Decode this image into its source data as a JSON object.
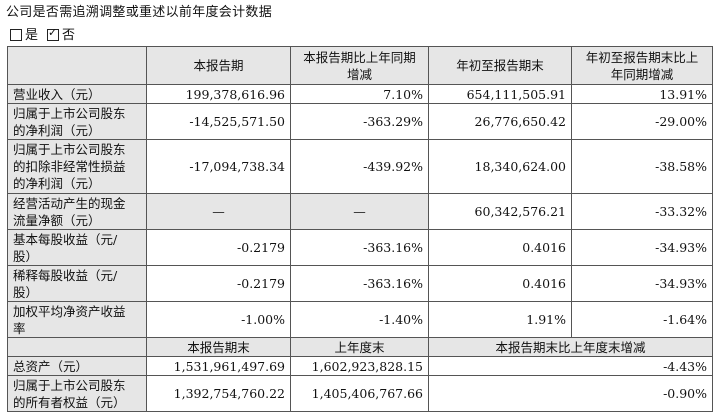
{
  "question": "公司是否需追溯调整或重述以前年度会计数据",
  "options": [
    {
      "label": "是",
      "checked": false
    },
    {
      "label": "否",
      "checked": true
    }
  ],
  "table1": {
    "headers": [
      "",
      "本报告期",
      "本报告期比上年同期\n增减",
      "年初至报告期末",
      "年初至报告期末比上\n年同期增减"
    ],
    "rows": [
      {
        "label": "营业收入（元）",
        "values": [
          "199,378,616.96",
          "7.10%",
          "654,111,505.91",
          "13.91%"
        ]
      },
      {
        "label": "归属于上市公司股东\n的净利润（元）",
        "values": [
          "-14,525,571.50",
          "-363.29%",
          "26,776,650.42",
          "-29.00%"
        ]
      },
      {
        "label": "归属于上市公司股东\n的扣除非经常性损益\n的净利润（元）",
        "values": [
          "-17,094,738.34",
          "-439.92%",
          "18,340,624.00",
          "-38.58%"
        ]
      },
      {
        "label": "经营活动产生的现金\n流量净额（元）",
        "values": [
          "—",
          "—",
          "60,342,576.21",
          "-33.32%"
        ]
      },
      {
        "label": "基本每股收益（元/\n股）",
        "values": [
          "-0.2179",
          "-363.16%",
          "0.4016",
          "-34.93%"
        ]
      },
      {
        "label": "稀释每股收益（元/\n股）",
        "values": [
          "-0.2179",
          "-363.16%",
          "0.4016",
          "-34.93%"
        ]
      },
      {
        "label": "加权平均净资产收益\n率",
        "values": [
          "-1.00%",
          "-1.40%",
          "1.91%",
          "-1.64%"
        ]
      }
    ]
  },
  "table2": {
    "headers": [
      "",
      "本报告期末",
      "上年度末",
      "本报告期末比上年度末增减"
    ],
    "rows": [
      {
        "label": "总资产（元）",
        "values": [
          "1,531,961,497.69",
          "1,602,923,828.15",
          "-4.43%"
        ]
      },
      {
        "label": "归属于上市公司股东\n的所有者权益（元）",
        "values": [
          "1,392,754,760.22",
          "1,405,406,767.66",
          "-0.90%"
        ]
      }
    ]
  }
}
